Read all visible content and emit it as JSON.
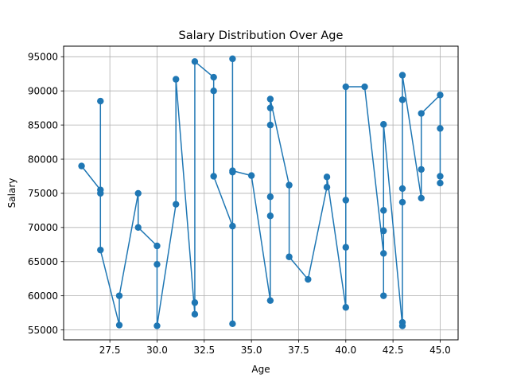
{
  "chart_data": {
    "type": "line",
    "title": "Salary Distribution Over Age",
    "xlabel": "Age",
    "ylabel": "Salary",
    "xlim": [
      25.05,
      45.95
    ],
    "ylim": [
      53550,
      96550
    ],
    "x_ticks": [
      27.5,
      30.0,
      32.5,
      35.0,
      37.5,
      40.0,
      42.5,
      45.0
    ],
    "x_tick_labels": [
      "27.5",
      "30.0",
      "32.5",
      "35.0",
      "37.5",
      "40.0",
      "42.5",
      "45.0"
    ],
    "y_ticks": [
      55000,
      60000,
      65000,
      70000,
      75000,
      80000,
      85000,
      90000,
      95000
    ],
    "y_tick_labels": [
      "55000",
      "60000",
      "65000",
      "70000",
      "75000",
      "80000",
      "85000",
      "90000",
      "95000"
    ],
    "grid": true,
    "color": "#1f77b4",
    "marker": "circle",
    "series": [
      {
        "x": [
          26,
          27,
          27,
          27,
          27,
          28,
          28,
          29,
          29,
          30,
          30,
          30,
          31,
          31,
          32,
          32,
          32,
          33,
          33,
          33,
          34,
          34,
          34,
          34,
          34,
          35,
          36,
          36,
          36,
          36,
          36,
          36,
          37,
          37,
          38,
          39,
          39,
          40,
          40,
          40,
          40,
          41,
          42,
          42,
          42,
          42,
          42,
          43,
          43,
          43,
          43,
          43,
          43,
          44,
          44,
          44,
          45,
          45,
          45,
          45
        ],
        "y": [
          79000,
          75500,
          75000,
          88500,
          66700,
          55700,
          60000,
          75000,
          70000,
          67300,
          64600,
          55600,
          73400,
          91700,
          57300,
          59000,
          94300,
          92000,
          90000,
          77500,
          70200,
          55900,
          94700,
          78100,
          78300,
          77600,
          59300,
          71700,
          74500,
          85000,
          87500,
          88800,
          76200,
          65700,
          62400,
          75900,
          77400,
          58300,
          74000,
          67100,
          90600,
          90600,
          66200,
          72500,
          69500,
          60000,
          85100,
          55600,
          56100,
          75700,
          73700,
          88700,
          92300,
          74300,
          78500,
          86700,
          89400,
          76500,
          77500,
          84500
        ]
      }
    ]
  }
}
